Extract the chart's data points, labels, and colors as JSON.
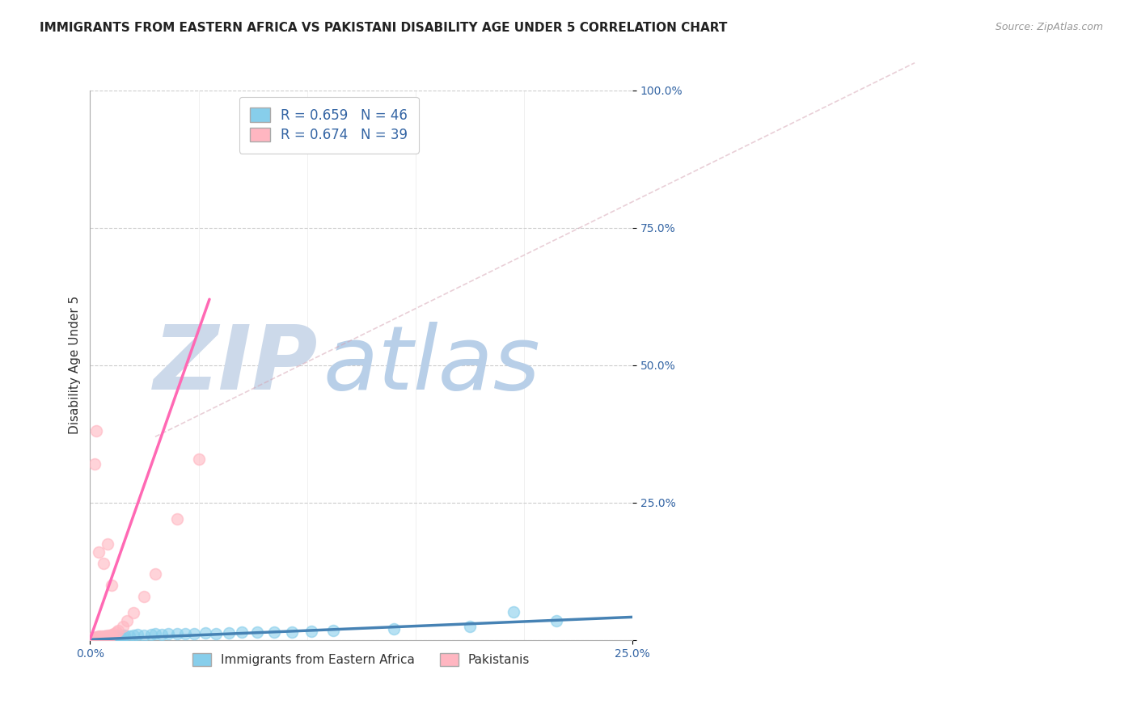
{
  "title": "IMMIGRANTS FROM EASTERN AFRICA VS PAKISTANI DISABILITY AGE UNDER 5 CORRELATION CHART",
  "source_text": "Source: ZipAtlas.com",
  "ylabel": "Disability Age Under 5",
  "xlim": [
    0.0,
    0.25
  ],
  "ylim": [
    0.0,
    1.0
  ],
  "ytick_values": [
    0.0,
    0.25,
    0.5,
    0.75,
    1.0
  ],
  "ytick_labels": [
    "",
    "25.0%",
    "50.0%",
    "75.0%",
    "100.0%"
  ],
  "xtick_values": [
    0.0,
    0.25
  ],
  "xtick_labels": [
    "0.0%",
    "25.0%"
  ],
  "background_color": "#ffffff",
  "grid_color": "#cccccc",
  "watermark_zip": "ZIP",
  "watermark_atlas": "atlas",
  "watermark_color_zip": "#ccd9ea",
  "watermark_color_atlas": "#b8cfe8",
  "series": [
    {
      "name": "Immigrants from Eastern Africa",
      "color": "#87CEEB",
      "line_color": "#4682B4",
      "R": 0.659,
      "N": 46,
      "scatter_x": [
        0.001,
        0.002,
        0.002,
        0.003,
        0.003,
        0.004,
        0.004,
        0.005,
        0.005,
        0.006,
        0.006,
        0.007,
        0.007,
        0.008,
        0.009,
        0.01,
        0.011,
        0.012,
        0.013,
        0.014,
        0.015,
        0.016,
        0.018,
        0.02,
        0.022,
        0.025,
        0.028,
        0.03,
        0.033,
        0.036,
        0.04,
        0.044,
        0.048,
        0.053,
        0.058,
        0.064,
        0.07,
        0.077,
        0.085,
        0.093,
        0.102,
        0.112,
        0.14,
        0.175,
        0.195,
        0.215
      ],
      "scatter_y": [
        0.003,
        0.002,
        0.004,
        0.003,
        0.005,
        0.004,
        0.006,
        0.003,
        0.005,
        0.004,
        0.006,
        0.005,
        0.007,
        0.005,
        0.006,
        0.007,
        0.006,
        0.008,
        0.007,
        0.008,
        0.007,
        0.009,
        0.008,
        0.009,
        0.01,
        0.009,
        0.01,
        0.011,
        0.01,
        0.011,
        0.012,
        0.011,
        0.012,
        0.013,
        0.012,
        0.013,
        0.014,
        0.015,
        0.014,
        0.015,
        0.016,
        0.017,
        0.02,
        0.025,
        0.052,
        0.035
      ],
      "trend_x": [
        0.0,
        0.25
      ],
      "trend_y": [
        0.001,
        0.042
      ]
    },
    {
      "name": "Pakistanis",
      "color": "#FFB6C1",
      "line_color": "#FF69B4",
      "R": 0.674,
      "N": 39,
      "scatter_x": [
        0.001,
        0.001,
        0.001,
        0.002,
        0.002,
        0.002,
        0.003,
        0.003,
        0.003,
        0.004,
        0.004,
        0.004,
        0.005,
        0.005,
        0.005,
        0.006,
        0.006,
        0.007,
        0.007,
        0.008,
        0.008,
        0.009,
        0.01,
        0.011,
        0.012,
        0.013,
        0.015,
        0.017,
        0.02,
        0.025,
        0.03,
        0.04,
        0.05,
        0.002,
        0.003,
        0.004,
        0.006,
        0.008,
        0.01
      ],
      "scatter_y": [
        0.002,
        0.003,
        0.004,
        0.002,
        0.003,
        0.005,
        0.003,
        0.004,
        0.006,
        0.003,
        0.005,
        0.007,
        0.004,
        0.006,
        0.008,
        0.005,
        0.007,
        0.006,
        0.008,
        0.007,
        0.009,
        0.008,
        0.01,
        0.012,
        0.015,
        0.018,
        0.025,
        0.035,
        0.05,
        0.08,
        0.12,
        0.22,
        0.33,
        0.32,
        0.38,
        0.16,
        0.14,
        0.175,
        0.1
      ],
      "trend_x": [
        0.0,
        0.055
      ],
      "trend_y": [
        0.002,
        0.62
      ]
    }
  ],
  "legend_color": "#3465A4",
  "title_fontsize": 11,
  "axis_label_fontsize": 11,
  "tick_fontsize": 10,
  "legend_fontsize": 12
}
